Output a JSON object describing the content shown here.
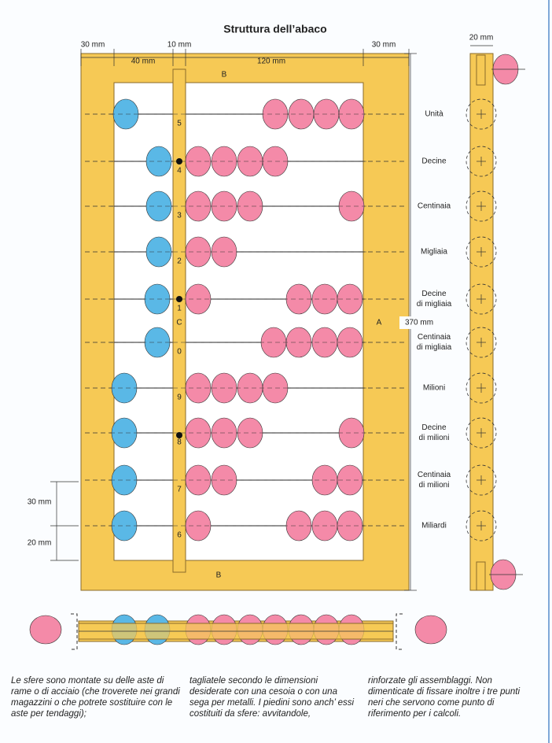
{
  "title": "Struttura dell’abaco",
  "dimensions": {
    "left_frame": "30 mm",
    "center_rod": "10 mm",
    "right_frame": "30 mm",
    "left_span": "40 mm",
    "right_span": "120 mm",
    "height": "370 mm",
    "side_width": "20 mm",
    "rod_spacing": "30 mm",
    "bottom_margin": "20 mm"
  },
  "frame_labels": {
    "top": "B",
    "bottom": "B",
    "side": "A",
    "center": "C"
  },
  "rods": [
    {
      "digit": "5",
      "label": [
        "Unità"
      ]
    },
    {
      "digit": "4",
      "label": [
        "Decine"
      ]
    },
    {
      "digit": "3",
      "label": [
        "Centinaia"
      ]
    },
    {
      "digit": "2",
      "label": [
        "Migliaia"
      ]
    },
    {
      "digit": "1",
      "label": [
        "Decine",
        "di migliaia"
      ]
    },
    {
      "digit": "0",
      "label": [
        "Centinaia",
        "di migliaia"
      ]
    },
    {
      "digit": "9",
      "label": [
        "Milioni"
      ]
    },
    {
      "digit": "8",
      "label": [
        "Decine",
        "di milioni"
      ]
    },
    {
      "digit": "7",
      "label": [
        "Centinaia",
        "di milioni"
      ]
    },
    {
      "digit": "6",
      "label": [
        "Miliardi"
      ]
    }
  ],
  "text_columns": [
    "Le sfere sono montate su delle aste di rame o di acciaio (che troverete nei grandi magazzini o che potrete sostituire con le aste per tendaggi);",
    "tagliatele secondo le dimensioni desiderate con una cesoia o con una sega per metalli. I piedini sono anch’ essi costituiti da sfere: avvitandole,",
    "rinforzate gli assemblaggi. Non dimenticate di fissare inoltre i tre punti neri che servono come punto di riferimento per i calcoli."
  ]
}
